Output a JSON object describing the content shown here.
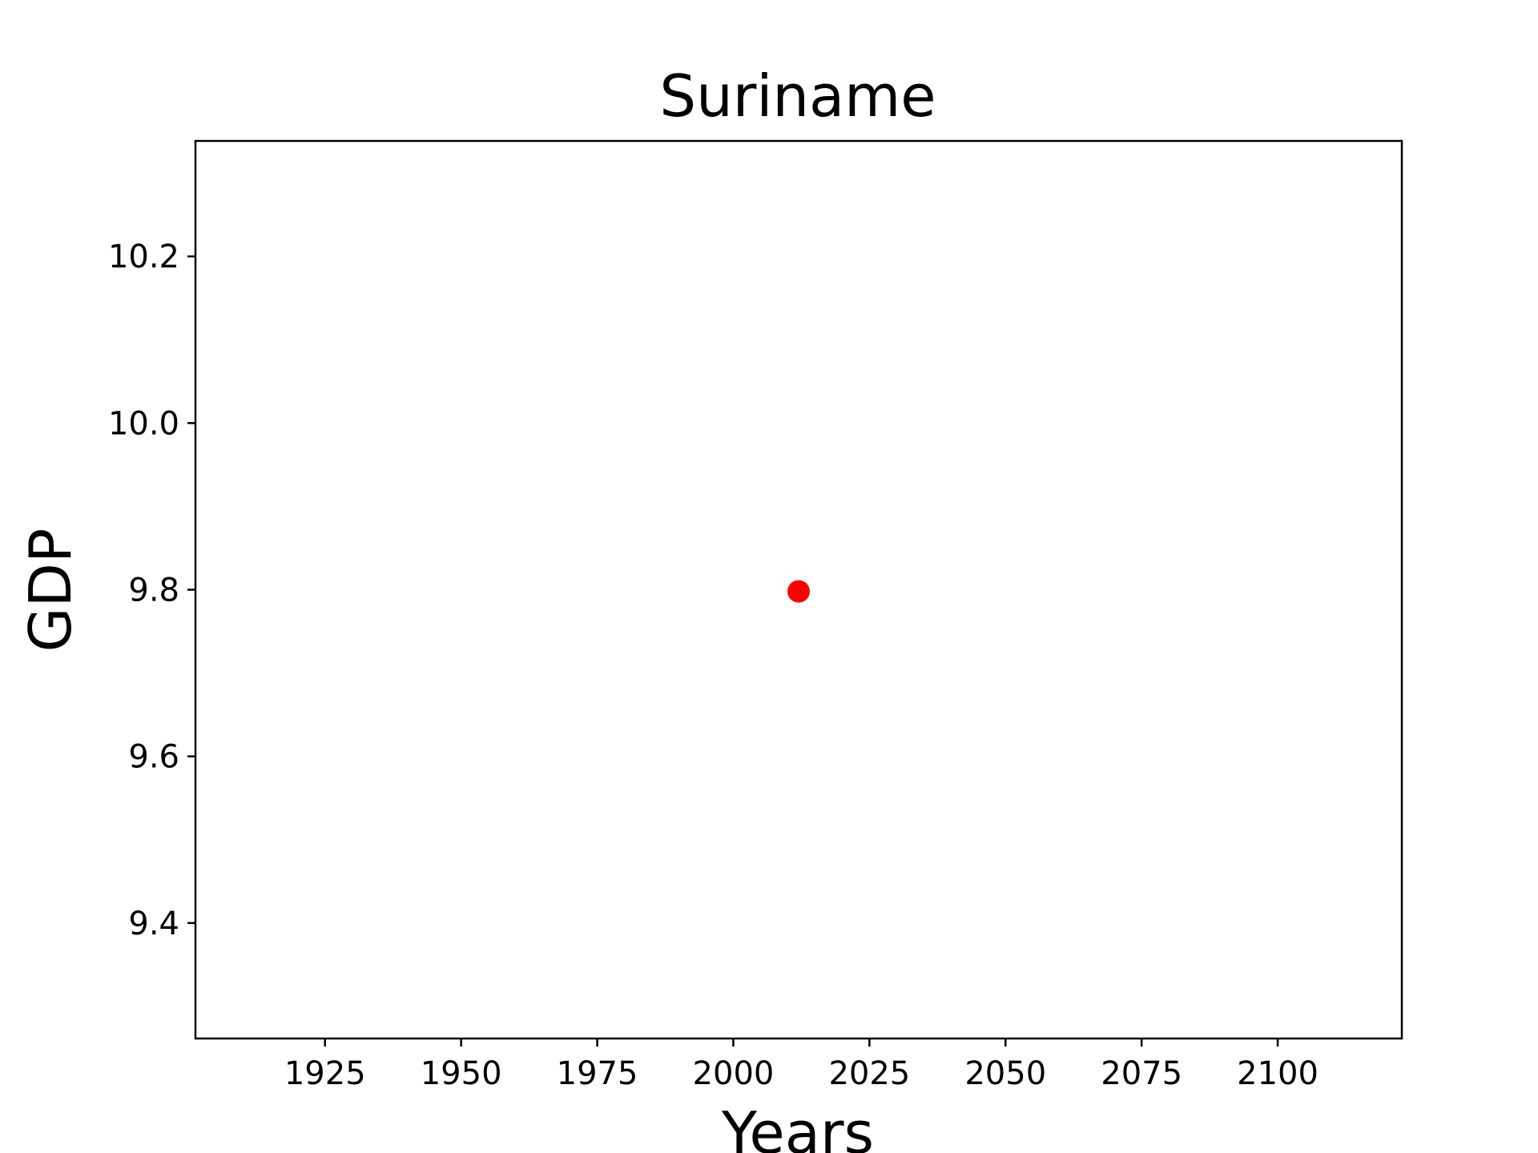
{
  "chart_data": {
    "type": "scatter",
    "title": "Suriname",
    "xlabel": "Years",
    "ylabel": "GDP",
    "xlim": [
      1901.2,
      2122.8
    ],
    "ylim": [
      9.2614,
      10.3386
    ],
    "x_ticks": [
      1925,
      1950,
      1975,
      2000,
      2025,
      2050,
      2075,
      2100
    ],
    "x_tick_labels": [
      "1925",
      "1950",
      "1975",
      "2000",
      "2025",
      "2050",
      "2075",
      "2100"
    ],
    "y_ticks": [
      9.4,
      9.6,
      9.8,
      10.0,
      10.2
    ],
    "y_tick_labels": [
      "9.4",
      "9.6",
      "9.8",
      "10.0",
      "10.2"
    ],
    "grid": false,
    "series": [
      {
        "color": "#ff0000",
        "points": [
          {
            "x": 2012,
            "y": 9.798
          }
        ]
      }
    ]
  }
}
